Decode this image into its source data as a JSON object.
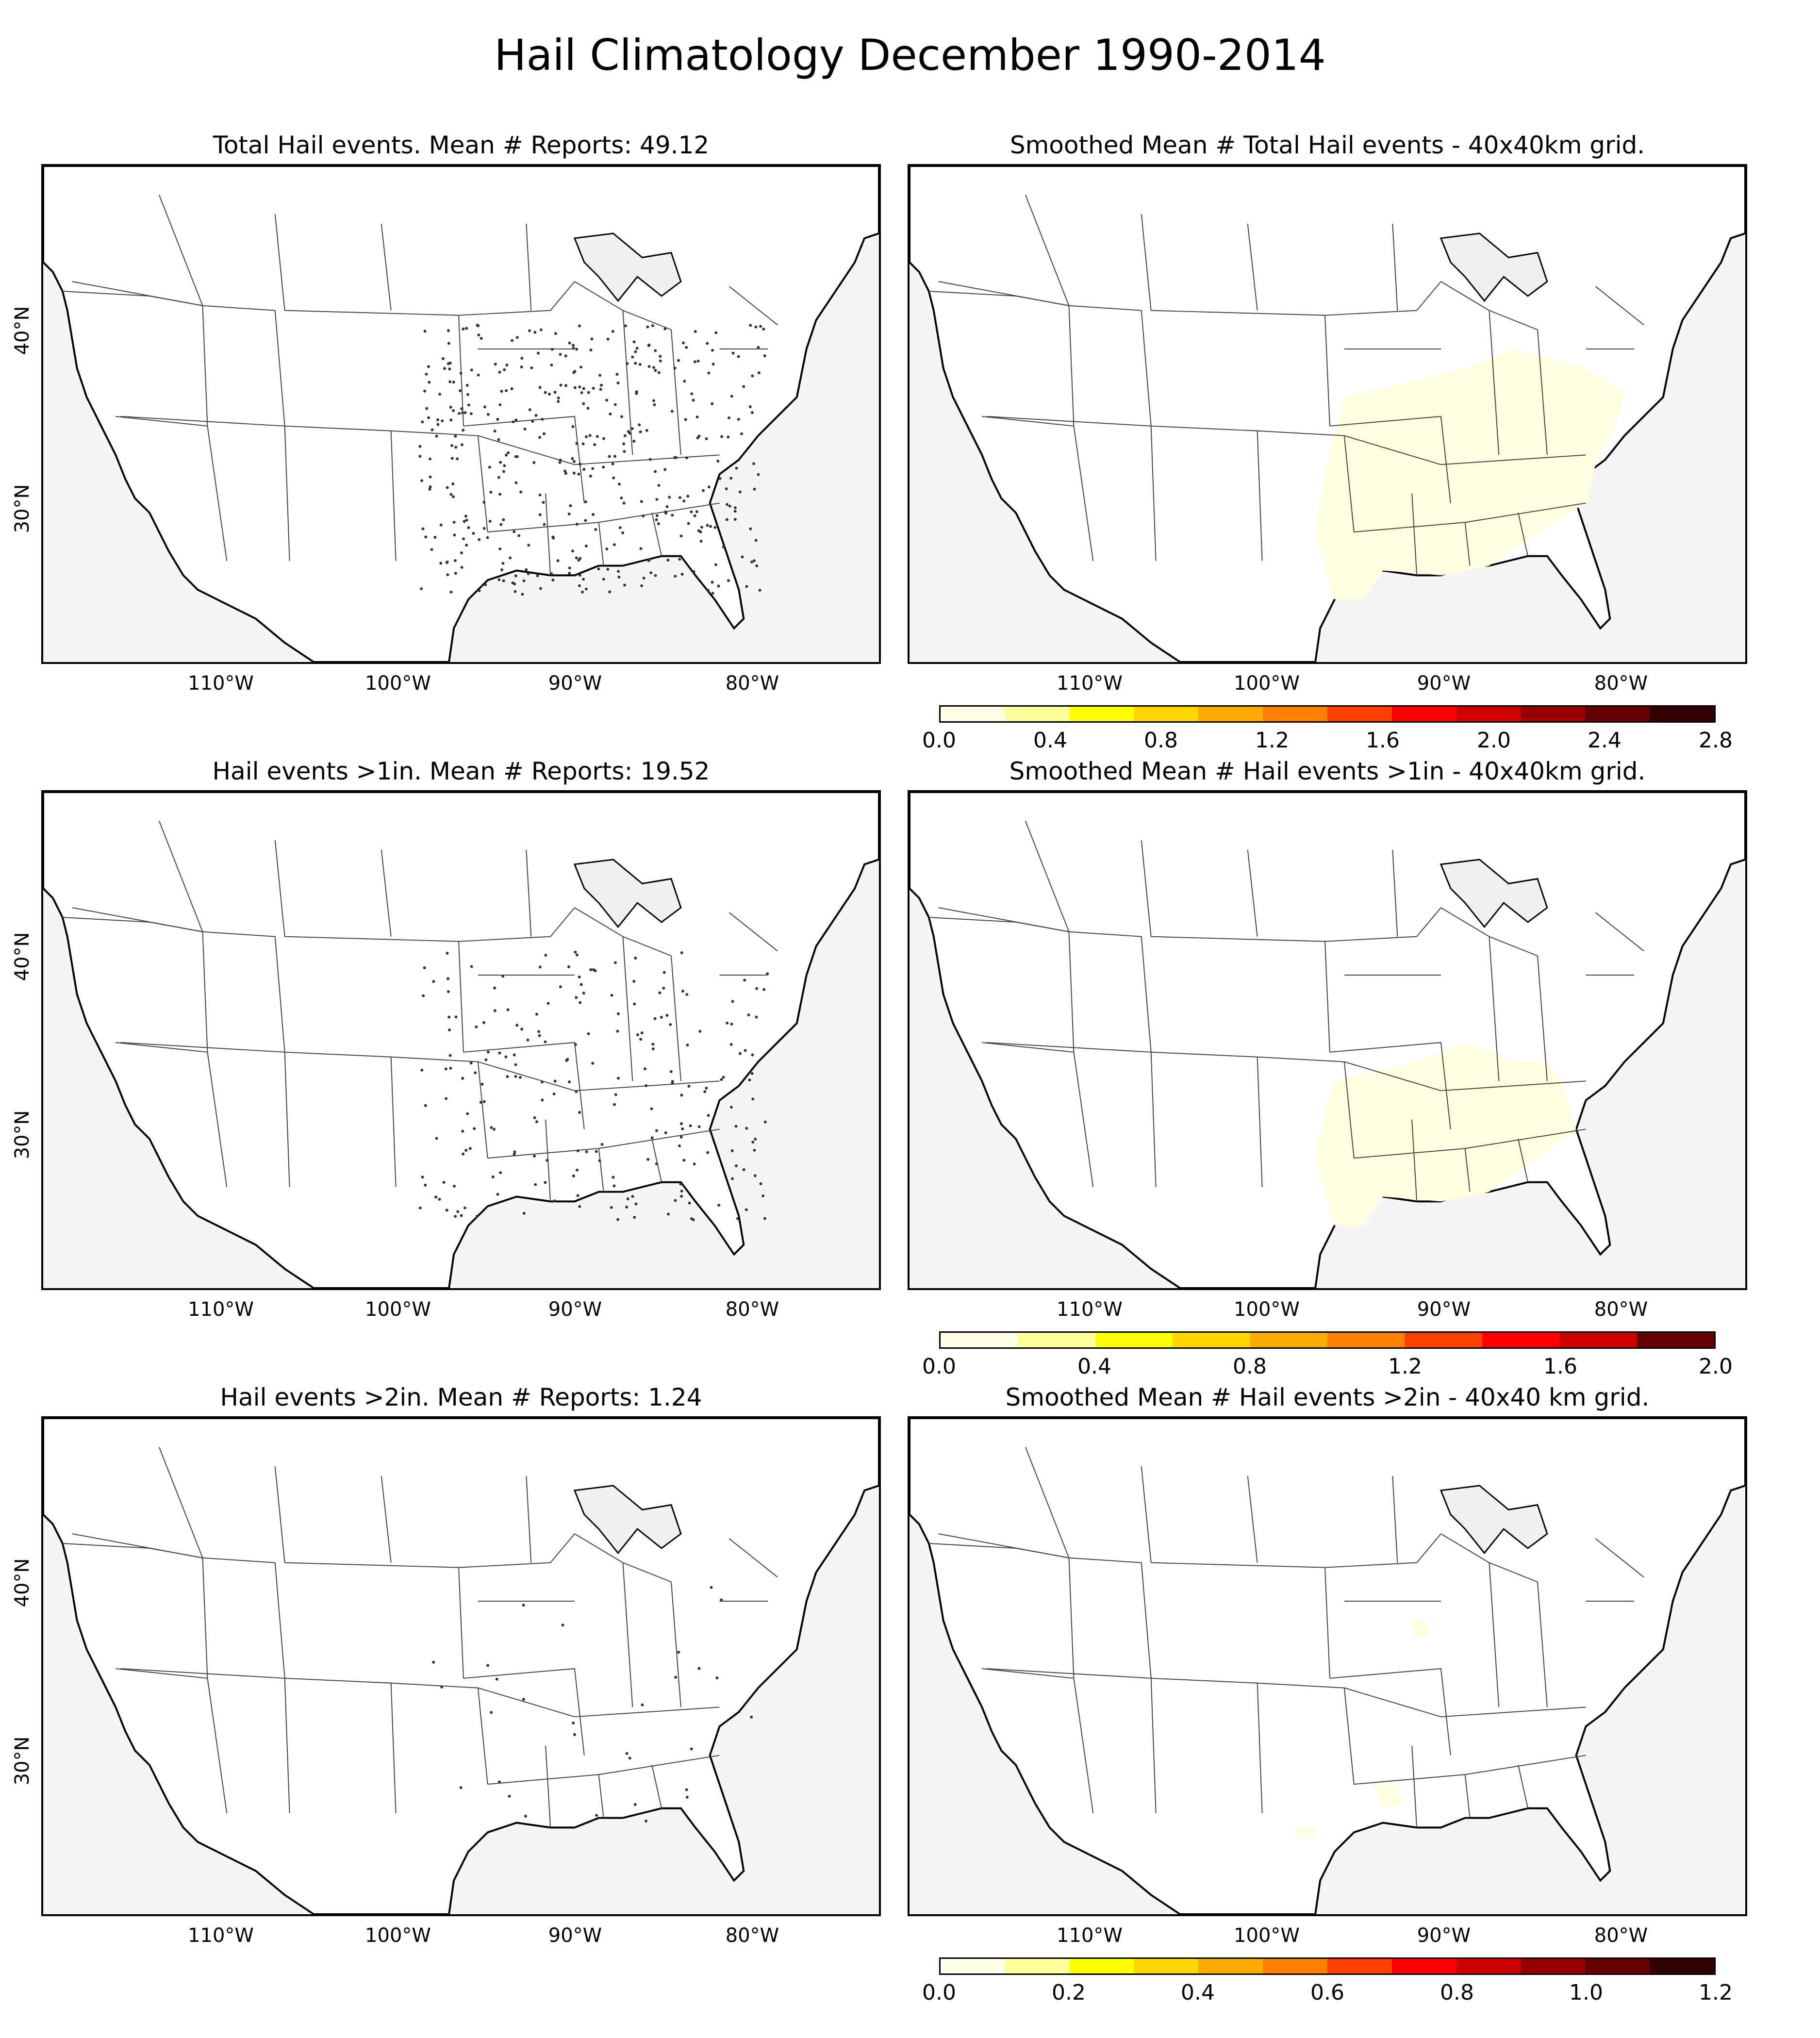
{
  "title": "Hail Climatology December 1990-2014",
  "panels": {
    "p1": {
      "title": "Total Hail events. Mean # Reports: 49.12"
    },
    "p2": {
      "title": "Smoothed Mean # Total Hail events - 40x40km grid."
    },
    "p3": {
      "title": "Hail events >1in. Mean # Reports: 19.52"
    },
    "p4": {
      "title": "Smoothed Mean # Hail events >1in - 40x40km grid."
    },
    "p5": {
      "title": "Hail events >2in. Mean # Reports: 1.24"
    },
    "p6": {
      "title": "Smoothed Mean # Hail events >2in - 40x40 km grid."
    }
  },
  "axes": {
    "lon_labels": [
      "110°W",
      "100°W",
      "90°W",
      "80°W"
    ],
    "lat_labels": [
      "40°N",
      "30°N"
    ]
  },
  "colorbars": {
    "cb1": {
      "labels": [
        "0.0",
        "0.4",
        "0.8",
        "1.2",
        "1.6",
        "2.0",
        "2.4",
        "2.8"
      ]
    },
    "cb2": {
      "labels": [
        "0.0",
        "0.4",
        "0.8",
        "1.2",
        "1.6",
        "2.0"
      ]
    },
    "cb3": {
      "labels": [
        "0.0",
        "0.2",
        "0.4",
        "0.6",
        "0.8",
        "1.0",
        "1.2"
      ]
    }
  },
  "colors": {
    "ocean": "#f5f5f5",
    "land": "#ffffff",
    "smoothed_fill": "#ffffe0",
    "colormap": [
      "#ffffe6",
      "#ffff99",
      "#ffff00",
      "#ffd700",
      "#ffaa00",
      "#ff8000",
      "#ff4000",
      "#ff0000",
      "#cc0000",
      "#990000",
      "#660000",
      "#330000"
    ]
  },
  "chart_data": [
    {
      "type": "scatter",
      "title": "Total Hail events. Mean # Reports: 49.12",
      "region": "Southern Plains to Southeast US",
      "mean_reports": 49.12
    },
    {
      "type": "heatmap",
      "title": "Smoothed Mean # Total Hail events - 40x40km grid.",
      "range": [
        0.0,
        2.8
      ]
    },
    {
      "type": "scatter",
      "title": "Hail events >1in. Mean # Reports: 19.52",
      "mean_reports": 19.52
    },
    {
      "type": "heatmap",
      "title": "Smoothed Mean # Hail events >1in - 40x40km grid.",
      "range": [
        0.0,
        2.0
      ]
    },
    {
      "type": "scatter",
      "title": "Hail events >2in. Mean # Reports: 1.24",
      "mean_reports": 1.24
    },
    {
      "type": "heatmap",
      "title": "Smoothed Mean # Hail events >2in - 40x40 km grid.",
      "range": [
        0.0,
        1.2
      ]
    }
  ]
}
